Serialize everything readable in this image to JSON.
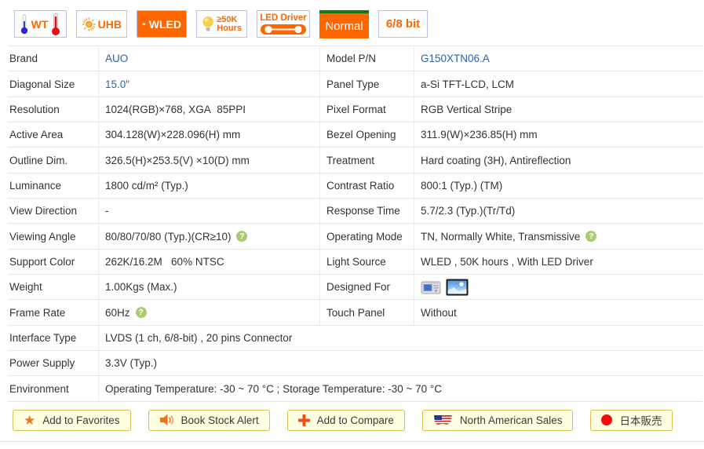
{
  "badges": {
    "wt": {
      "label": "WT"
    },
    "uhb": {
      "label": "UHB"
    },
    "wled": {
      "label": "WLED"
    },
    "hours": {
      "line1": "≥50K",
      "line2": "Hours"
    },
    "led_driver": {
      "label": "LED Driver"
    },
    "normal": {
      "label": "Normal"
    },
    "bit": {
      "label": "6/8 bit"
    }
  },
  "icons": {
    "help_glyph": "?",
    "designed_for": [
      "industrial-equipment-icon",
      "outdoor-display-icon"
    ]
  },
  "colors": {
    "accent_orange": "#ff6600",
    "link_blue": "#2b63aa",
    "help_green": "#a8cd71",
    "button_bg": "#ffffe1",
    "button_border": "#dbbf57",
    "normal_badge_green": "#0d7c0d",
    "japan_red": "#f40b0b"
  },
  "specs": {
    "rows": [
      {
        "cells": [
          {
            "label": "Brand",
            "value": "AUO",
            "link": true
          },
          {
            "label": "Model P/N",
            "value": "G150XTN06.A",
            "link": true
          }
        ]
      },
      {
        "cells": [
          {
            "label": "Diagonal Size",
            "value": "15.0\"",
            "link": true
          },
          {
            "label": "Panel Type",
            "value": "a-Si TFT-LCD, LCM"
          }
        ]
      },
      {
        "cells": [
          {
            "label": "Resolution",
            "value": "1024(RGB)×768, XGA  85PPI"
          },
          {
            "label": "Pixel Format",
            "value": "RGB Vertical Stripe"
          }
        ]
      },
      {
        "cells": [
          {
            "label": "Active Area",
            "value": "304.128(W)×228.096(H) mm"
          },
          {
            "label": "Bezel Opening",
            "value": "311.9(W)×236.85(H) mm"
          }
        ]
      },
      {
        "cells": [
          {
            "label": "Outline Dim.",
            "value": "326.5(H)×253.5(V) ×10(D) mm"
          },
          {
            "label": "Treatment",
            "value": "Hard coating (3H), Antireflection"
          }
        ]
      },
      {
        "cells": [
          {
            "label": "Luminance",
            "value": "1800 cd/m² (Typ.)"
          },
          {
            "label": "Contrast Ratio",
            "value": "800:1 (Typ.) (TM)"
          }
        ]
      },
      {
        "cells": [
          {
            "label": "View Direction",
            "value": "-"
          },
          {
            "label": "Response Time",
            "value": "5.7/2.3 (Typ.)(Tr/Td)"
          }
        ]
      },
      {
        "cells": [
          {
            "label": "Viewing Angle",
            "value": "80/80/70/80 (Typ.)(CR≥10)",
            "help": true
          },
          {
            "label": "Operating Mode",
            "value": "TN, Normally White, Transmissive",
            "help": true
          }
        ]
      },
      {
        "cells": [
          {
            "label": "Support Color",
            "value": "262K/16.2M   60% NTSC"
          },
          {
            "label": "Light Source",
            "value": "WLED , 50K hours , With LED Driver"
          }
        ]
      },
      {
        "cells": [
          {
            "label": "Weight",
            "value": "1.00Kgs (Max.)"
          },
          {
            "label": "Designed For",
            "icons": [
              "industrial-equipment-icon",
              "outdoor-display-icon"
            ]
          }
        ]
      },
      {
        "cells": [
          {
            "label": "Frame Rate",
            "value": "60Hz",
            "help": true
          },
          {
            "label": "Touch Panel",
            "value": "Without"
          }
        ]
      },
      {
        "full": true,
        "cells": [
          {
            "label": "Interface Type",
            "value": "LVDS (1 ch, 6/8-bit) , 20 pins Connector"
          }
        ]
      },
      {
        "full": true,
        "cells": [
          {
            "label": "Power Supply",
            "value": "3.3V (Typ.)"
          }
        ]
      },
      {
        "full": true,
        "cells": [
          {
            "label": "Environment",
            "value": "Operating Temperature: -30 ~ 70 °C ; Storage Temperature: -30 ~ 70 °C"
          }
        ]
      }
    ]
  },
  "buttons": [
    {
      "label": "Add to Favorites"
    },
    {
      "label": "Book Stock Alert"
    },
    {
      "label": "Add to Compare"
    },
    {
      "label": "North American Sales"
    },
    {
      "label": "日本販売"
    }
  ]
}
